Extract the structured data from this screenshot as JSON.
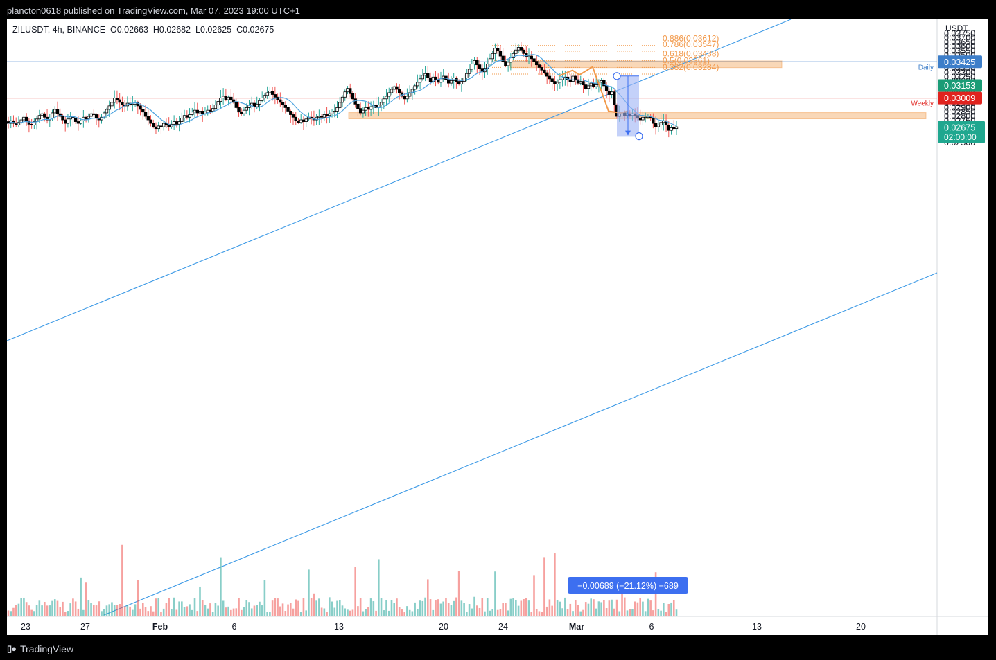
{
  "header": {
    "publish_line": "plancton0618 published on TradingView.com, Mar 07, 2023 19:00 UTC+1"
  },
  "symbol": {
    "info_line": "ZILUSDT, 4h, BINANCE  O0.02663  H0.02682  L0.02625  C0.02675"
  },
  "footer": {
    "brand": "TradingView"
  },
  "colors": {
    "up": "#26a69a",
    "down": "#ef5350",
    "body": "#000000",
    "ma": "#4ca3e0",
    "channel": "#3d9ae6",
    "fib": "#f2994a",
    "zone_fill": "#f7c89a",
    "weekly": "#e0231e",
    "daily": "#3d7ec9",
    "measure_fill": "#9db3f5",
    "measure_label": "#3d6ff0"
  },
  "chart_data": {
    "type": "candlestick",
    "symbol": "ZILUSDT",
    "timeframe": "4h",
    "exchange": "BINANCE",
    "currency_label": "USDT",
    "ohlc_last": {
      "open": 0.02663,
      "high": 0.02682,
      "low": 0.02625,
      "close": 0.02675
    },
    "ylim": [
      0.0247,
      0.038
    ],
    "y_ticks": [
      "0.03750",
      "0.03700",
      "0.03650",
      "0.03600",
      "0.03550",
      "0.03500",
      "0.03450",
      "0.03400",
      "0.03350",
      "0.03300",
      "0.03250",
      "0.03200",
      "0.03100",
      "0.03050",
      "0.02950",
      "0.02900",
      "0.02850",
      "0.02800",
      "0.02750",
      "0.02700",
      "0.02600",
      "0.02550",
      "0.02500"
    ],
    "x_ticks": [
      "23",
      "27",
      "Feb",
      "6",
      "13",
      "20",
      "24",
      "Mar",
      "6",
      "13",
      "20"
    ],
    "fib_levels": [
      {
        "label": "0.886(0.03612)",
        "value": 0.03612
      },
      {
        "label": "0.786(0.03547)",
        "value": 0.03547
      },
      {
        "label": "0.618(0.03438)",
        "value": 0.03438
      },
      {
        "label": "0.5(0.03361)",
        "value": 0.03361
      },
      {
        "label": "0.382(0.03284)",
        "value": 0.03284
      }
    ],
    "horizontal_levels": [
      {
        "name": "Daily",
        "value": 0.03425,
        "badge": "0.03425"
      },
      {
        "name": "Weekly",
        "value": 0.03009,
        "badge": "0.03009"
      }
    ],
    "price_badges": [
      {
        "value": 0.03153,
        "text": "0.03153"
      },
      {
        "value": 0.02675,
        "text": "0.02675",
        "countdown": "02:00:00"
      }
    ],
    "zones": [
      {
        "top": 0.03435,
        "bottom": 0.03358
      },
      {
        "top": 0.02843,
        "bottom": 0.02772
      }
    ],
    "measurement": {
      "from": 0.03262,
      "to": 0.02573,
      "label": "−0.00689 (−21.12%) −689"
    },
    "projection_path": [
      0.03262,
      0.03327,
      0.03275,
      0.03367,
      0.0286,
      0.0284,
      0.0286
    ],
    "closes": [
      0.0272,
      0.0275,
      0.0272,
      0.027,
      0.0273,
      0.0276,
      0.0279,
      0.0275,
      0.0271,
      0.027,
      0.0274,
      0.0277,
      0.0281,
      0.0283,
      0.0279,
      0.0276,
      0.0278,
      0.0284,
      0.0288,
      0.0283,
      0.028,
      0.0276,
      0.0272,
      0.0277,
      0.028,
      0.0278,
      0.0274,
      0.0272,
      0.0275,
      0.0279,
      0.0277,
      0.028,
      0.0283,
      0.0282,
      0.0278,
      0.0276,
      0.0279,
      0.0284,
      0.0288,
      0.0292,
      0.0296,
      0.0301,
      0.0299,
      0.0296,
      0.0293,
      0.0292,
      0.0295,
      0.0293,
      0.0294,
      0.0296,
      0.0292,
      0.0288,
      0.0285,
      0.028,
      0.0276,
      0.0272,
      0.0268,
      0.0266,
      0.0269,
      0.0268,
      0.0272,
      0.027,
      0.0268,
      0.0271,
      0.0274,
      0.0271,
      0.0274,
      0.0278,
      0.0281,
      0.0279,
      0.0282,
      0.0285,
      0.0287,
      0.0284,
      0.0286,
      0.0283,
      0.0285,
      0.0287,
      0.0286,
      0.0289,
      0.0293,
      0.0297,
      0.0301,
      0.0303,
      0.0299,
      0.0302,
      0.0299,
      0.0296,
      0.029,
      0.0285,
      0.0283,
      0.0287,
      0.029,
      0.0293,
      0.0295,
      0.0291,
      0.0294,
      0.0298,
      0.0301,
      0.0304,
      0.0307,
      0.0309,
      0.0305,
      0.0302,
      0.0299,
      0.0296,
      0.0293,
      0.029,
      0.0286,
      0.0282,
      0.0279,
      0.0275,
      0.0273,
      0.0276,
      0.0274,
      0.0277,
      0.0279,
      0.0278,
      0.0276,
      0.0279,
      0.028,
      0.0279,
      0.0282,
      0.0281,
      0.0283,
      0.0285,
      0.0286,
      0.029,
      0.0296,
      0.0302,
      0.0308,
      0.0312,
      0.0306,
      0.03,
      0.0294,
      0.0289,
      0.0284,
      0.0287,
      0.029,
      0.0288,
      0.0291,
      0.0293,
      0.029,
      0.0293,
      0.0296,
      0.03,
      0.0303,
      0.0307,
      0.0311,
      0.0314,
      0.0311,
      0.0307,
      0.0303,
      0.03,
      0.0303,
      0.0307,
      0.0311,
      0.0315,
      0.0319,
      0.0323,
      0.0327,
      0.0329,
      0.0324,
      0.032,
      0.0325,
      0.0322,
      0.0319,
      0.0323,
      0.0326,
      0.0322,
      0.0318,
      0.0321,
      0.0324,
      0.032,
      0.0317,
      0.032,
      0.0324,
      0.0329,
      0.0334,
      0.034,
      0.0344,
      0.0339,
      0.0335,
      0.0331,
      0.0335,
      0.034,
      0.0346,
      0.0352,
      0.0358,
      0.0355,
      0.0349,
      0.0343,
      0.0338,
      0.0342,
      0.0347,
      0.0352,
      0.0356,
      0.0359,
      0.0356,
      0.0352,
      0.0348,
      0.0349,
      0.0346,
      0.0343,
      0.0339,
      0.0336,
      0.0333,
      0.033,
      0.0326,
      0.0323,
      0.032,
      0.0317,
      0.0319,
      0.0322,
      0.0324,
      0.0325,
      0.0322,
      0.032,
      0.0326,
      0.0322,
      0.0318,
      0.032,
      0.0316,
      0.0312,
      0.0315,
      0.0318,
      0.0314,
      0.0316,
      0.0319,
      0.0321,
      0.0315,
      0.0309,
      0.0305,
      0.0308,
      0.0293,
      0.028,
      0.0285,
      0.0284,
      0.0281,
      0.0283,
      0.0281,
      0.0283,
      0.0281,
      0.0278,
      0.0276,
      0.0279,
      0.0279,
      0.028,
      0.0278,
      0.0272,
      0.0268,
      0.027,
      0.0273,
      0.0275,
      0.027,
      0.0264,
      0.0267,
      0.0266,
      0.0268
    ]
  }
}
